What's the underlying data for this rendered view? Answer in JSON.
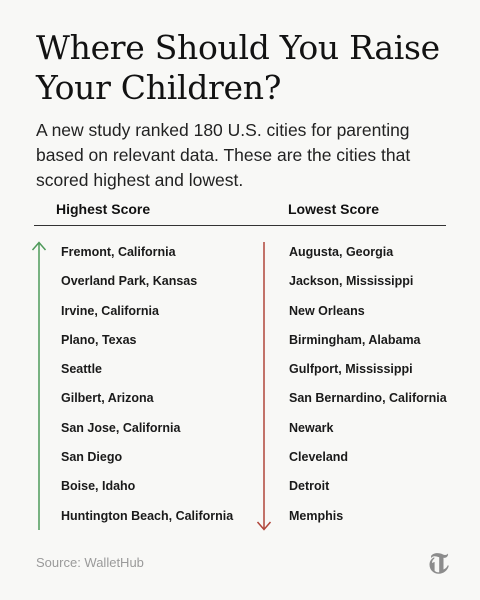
{
  "title": "Where Should You Raise Your Children?",
  "subtitle": "A new study ranked 180 U.S. cities for parenting based on relevant data. These are the cities that scored highest and lowest.",
  "highest": {
    "header": "Highest Score",
    "color": "#4e9a5a",
    "cities": [
      "Fremont, California",
      "Overland Park, Kansas",
      "Irvine, California",
      "Plano, Texas",
      "Seattle",
      "Gilbert, Arizona",
      "San Jose, California",
      "San Diego",
      "Boise, Idaho",
      "Huntington Beach, California"
    ]
  },
  "lowest": {
    "header": "Lowest Score",
    "color": "#b0453a",
    "cities": [
      "Augusta, Georgia",
      "Jackson, Mississippi",
      "New Orleans",
      "Birmingham, Alabama",
      "Gulfport, Mississippi",
      "San Bernardino, California",
      "Newark",
      "Cleveland",
      "Detroit",
      "Memphis"
    ]
  },
  "source": "Source: WalletHub",
  "logo_icon": "nyt-t-logo-icon"
}
